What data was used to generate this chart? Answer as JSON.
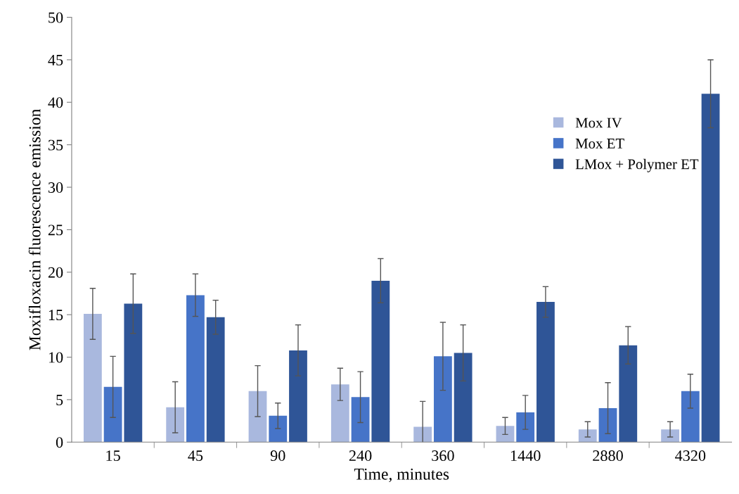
{
  "chart_data": {
    "type": "bar",
    "xlabel": "Time, minutes",
    "ylabel": "Moxifloxacin fluorescence emission",
    "categories": [
      "15",
      "45",
      "90",
      "240",
      "360",
      "1440",
      "2880",
      "4320"
    ],
    "series": [
      {
        "name": "Mox IV",
        "color": "#a9b8de",
        "values": [
          15.1,
          4.1,
          6.0,
          6.8,
          1.8,
          1.9,
          1.5,
          1.5
        ],
        "errors": [
          3.0,
          3.0,
          3.0,
          1.9,
          3.0,
          1.0,
          0.9,
          0.9
        ]
      },
      {
        "name": "Mox ET",
        "color": "#4674c8",
        "values": [
          6.5,
          17.3,
          3.1,
          5.3,
          10.1,
          3.5,
          4.0,
          6.0
        ],
        "errors": [
          3.6,
          2.5,
          1.5,
          3.0,
          4.0,
          2.0,
          3.0,
          2.0
        ]
      },
      {
        "name": "LMox + Polymer ET",
        "color": "#2f5597",
        "values": [
          16.3,
          14.7,
          10.8,
          19.0,
          10.5,
          16.5,
          11.4,
          41.0
        ],
        "errors": [
          3.5,
          2.0,
          3.0,
          2.6,
          3.3,
          1.8,
          2.2,
          4.0
        ]
      }
    ],
    "ylim": [
      0,
      50
    ],
    "yticks": [
      0,
      5,
      10,
      15,
      20,
      25,
      30,
      35,
      40,
      45,
      50
    ],
    "grid": false,
    "legend": "right"
  }
}
